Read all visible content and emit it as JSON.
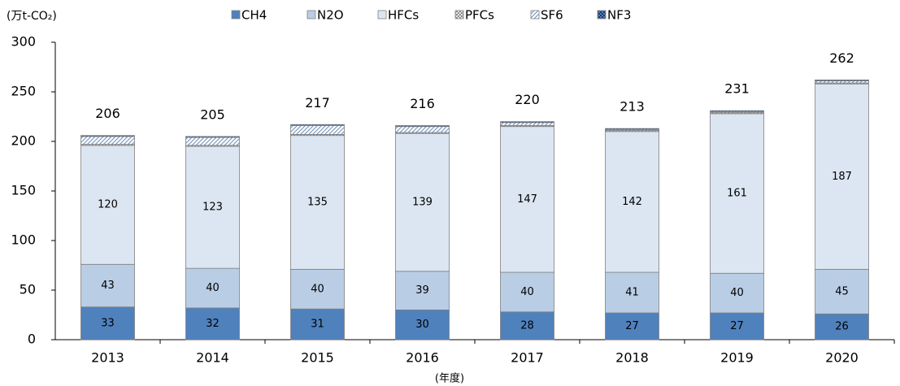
{
  "chart_data": {
    "type": "stacked_bar",
    "y_label": "(万t-CO₂)",
    "x_label": "(年度)",
    "categories": [
      "2013",
      "2014",
      "2015",
      "2016",
      "2017",
      "2018",
      "2019",
      "2020"
    ],
    "series": [
      {
        "name": "CH4",
        "color": "#4f81bd",
        "values": [
          33,
          32,
          31,
          30,
          28,
          27,
          27,
          26
        ]
      },
      {
        "name": "N2O",
        "color": "#b9cde5",
        "values": [
          43,
          40,
          40,
          39,
          40,
          41,
          40,
          45
        ]
      },
      {
        "name": "HFCs",
        "color": "#dce6f2",
        "values": [
          120,
          123,
          135,
          139,
          147,
          142,
          161,
          187
        ]
      },
      {
        "name": "PFCs",
        "color": "#a0a0a0",
        "pattern": "crosshatch",
        "values": [
          1,
          1,
          1,
          1,
          1,
          1,
          1,
          1
        ]
      },
      {
        "name": "SF6",
        "color": "#7f9cc0",
        "pattern": "diagonal",
        "values": [
          8,
          8,
          9,
          6,
          3,
          1,
          1,
          2
        ]
      },
      {
        "name": "NF3",
        "color": "#1f3864",
        "pattern": "checker",
        "values": [
          1,
          1,
          1,
          1,
          1,
          1,
          1,
          1
        ]
      }
    ],
    "labeled_series": [
      0,
      1,
      2
    ],
    "totals": [
      206,
      205,
      217,
      216,
      220,
      213,
      231,
      262
    ],
    "ylim": [
      0,
      300
    ],
    "yticks": [
      0,
      50,
      100,
      150,
      200,
      250,
      300
    ]
  }
}
